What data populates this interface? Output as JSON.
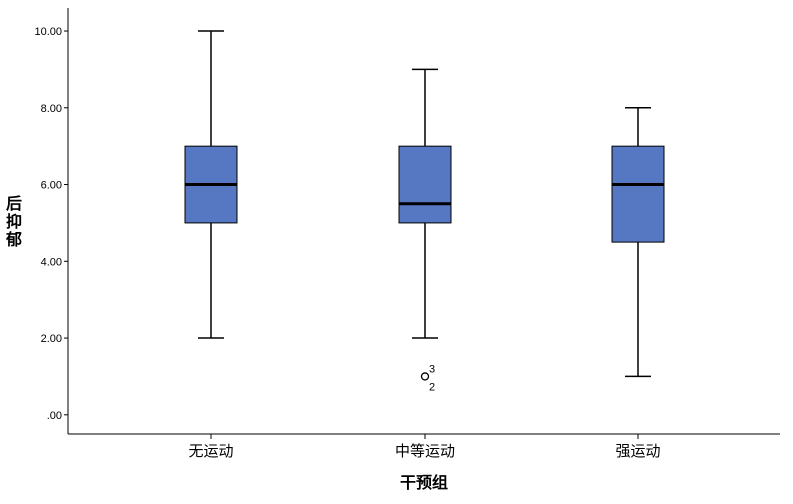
{
  "chart_data": {
    "type": "boxplot",
    "xlabel": "干预组",
    "ylabel": "后抑郁",
    "ylim": [
      -0.5,
      10.6
    ],
    "yticks": [
      0,
      2,
      4,
      6,
      8,
      10
    ],
    "ytick_labels": [
      ".00",
      "2.00",
      "4.00",
      "6.00",
      "8.00",
      "10.00"
    ],
    "grid": false,
    "box_color": "#5677c1",
    "categories": [
      "无运动",
      "中等运动",
      "强运动"
    ],
    "boxes": [
      {
        "category": "无运动",
        "min": 2,
        "q1": 5,
        "median": 6,
        "q3": 7,
        "max": 10,
        "outliers": []
      },
      {
        "category": "中等运动",
        "min": 2,
        "q1": 5,
        "median": 5.5,
        "q3": 7,
        "max": 9,
        "outliers": [
          {
            "value": 1,
            "labels": [
              "3",
              "2"
            ]
          }
        ]
      },
      {
        "category": "强运动",
        "min": 1,
        "q1": 4.5,
        "median": 6,
        "q3": 7,
        "max": 8,
        "outliers": []
      }
    ]
  }
}
